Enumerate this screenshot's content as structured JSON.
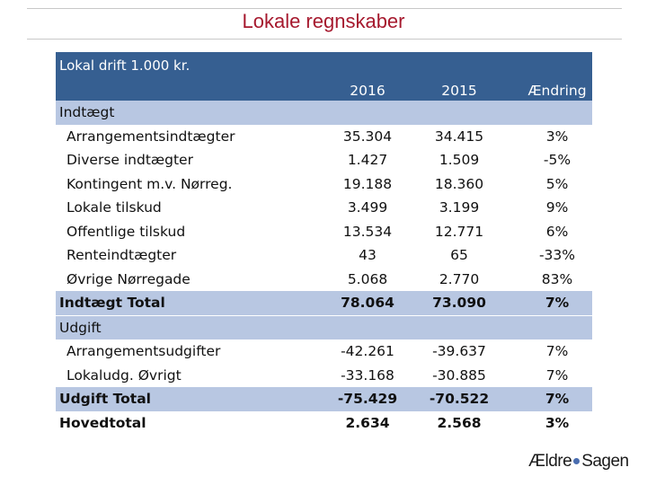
{
  "title": "Lokale regnskaber",
  "table": {
    "header_title": "Lokal drift 1.000 kr.",
    "columns": [
      "2016",
      "2015",
      "Ændring"
    ],
    "sections": [
      {
        "name": "Indtægt",
        "rows": [
          {
            "label": "Arrangementsindtægter",
            "v2016": "35.304",
            "v2015": "34.415",
            "change": "3%"
          },
          {
            "label": "Diverse indtægter",
            "v2016": "1.427",
            "v2015": "1.509",
            "change": "-5%"
          },
          {
            "label": "Kontingent m.v. Nørreg.",
            "v2016": "19.188",
            "v2015": "18.360",
            "change": "5%"
          },
          {
            "label": "Lokale tilskud",
            "v2016": "3.499",
            "v2015": "3.199",
            "change": "9%"
          },
          {
            "label": "Offentlige tilskud",
            "v2016": "13.534",
            "v2015": "12.771",
            "change": "6%"
          },
          {
            "label": "Renteindtægter",
            "v2016": "43",
            "v2015": "65",
            "change": "-33%"
          },
          {
            "label": "Øvrige Nørregade",
            "v2016": "5.068",
            "v2015": "2.770",
            "change": "83%"
          }
        ],
        "total": {
          "label": "Indtægt Total",
          "v2016": "78.064",
          "v2015": "73.090",
          "change": "7%"
        }
      },
      {
        "name": "Udgift",
        "rows": [
          {
            "label": "Arrangementsudgifter",
            "v2016": "-42.261",
            "v2015": "-39.637",
            "change": "7%"
          },
          {
            "label": "Lokaludg. Øvrigt",
            "v2016": "-33.168",
            "v2015": "-30.885",
            "change": "7%"
          }
        ],
        "total": {
          "label": "Udgift Total",
          "v2016": "-75.429",
          "v2015": "-70.522",
          "change": "7%"
        }
      }
    ],
    "grand_total": {
      "label": "Hovedtotal",
      "v2016": "2.634",
      "v2015": "2.568",
      "change": "3%"
    }
  },
  "logo": {
    "part1": "Ældre",
    "part2": "Sagen"
  }
}
